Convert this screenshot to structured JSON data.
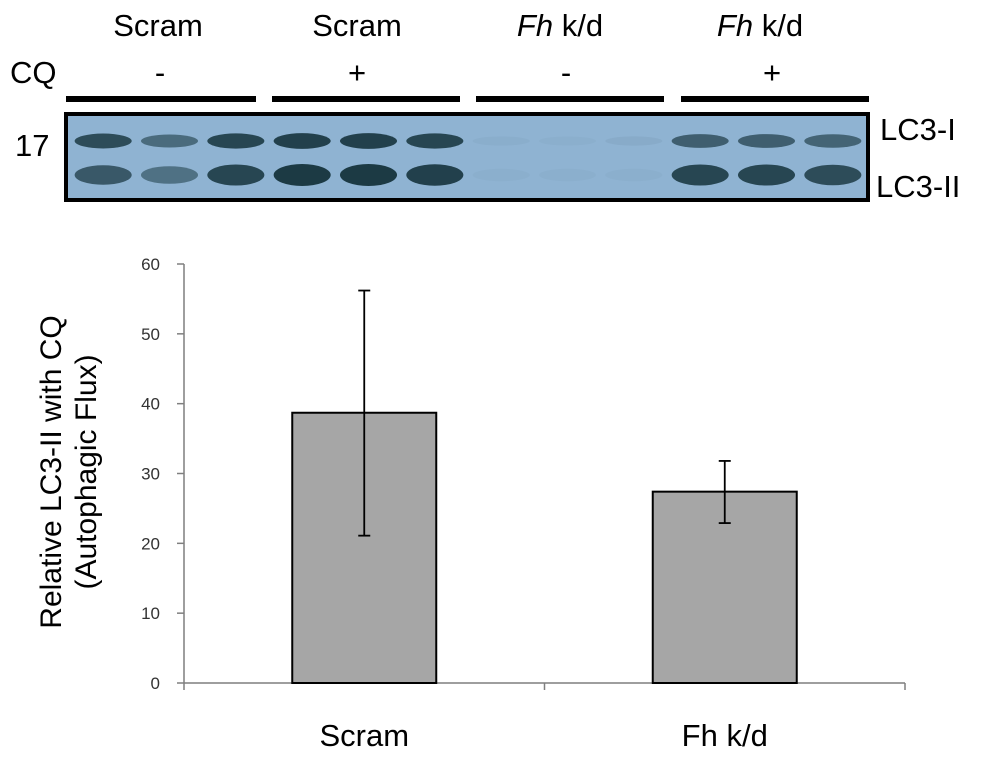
{
  "blot": {
    "groups": [
      {
        "name": "Scram",
        "name_italic": "",
        "treatment": "-"
      },
      {
        "name": "Scram",
        "name_italic": "",
        "treatment": "+"
      },
      {
        "name": " k/d",
        "name_italic": "Fh",
        "treatment": "-"
      },
      {
        "name": " k/d",
        "name_italic": "Fh",
        "treatment": "+"
      }
    ],
    "treatment_label": "CQ",
    "marker": "17",
    "band_labels": [
      "LC3-I",
      "LC3-II"
    ],
    "lanes": [
      {
        "lc3i": 0.85,
        "lc3ii": 0.75
      },
      {
        "lc3i": 0.6,
        "lc3ii": 0.55
      },
      {
        "lc3i": 0.9,
        "lc3ii": 0.9
      },
      {
        "lc3i": 0.95,
        "lc3ii": 1.0
      },
      {
        "lc3i": 0.95,
        "lc3ii": 1.0
      },
      {
        "lc3i": 0.9,
        "lc3ii": 0.95
      },
      {
        "lc3i": 0.04,
        "lc3ii": 0.03
      },
      {
        "lc3i": 0.03,
        "lc3ii": 0.03
      },
      {
        "lc3i": 0.06,
        "lc3ii": 0.03
      },
      {
        "lc3i": 0.7,
        "lc3ii": 0.9
      },
      {
        "lc3i": 0.7,
        "lc3ii": 0.9
      },
      {
        "lc3i": 0.65,
        "lc3ii": 0.85
      }
    ],
    "colors": {
      "membrane": "#8fb3d2",
      "band": "#1c3a44"
    }
  },
  "chart_data": {
    "type": "bar",
    "categories": [
      "Scram",
      "Fh k/d"
    ],
    "values": [
      38.7,
      27.4
    ],
    "error_high": [
      56.2,
      31.8
    ],
    "error_low": [
      21.1,
      22.9
    ],
    "ylabel_line1": "Relative LC3-II with CQ",
    "ylabel_line2": "(Autophagic Flux)",
    "ylim": [
      0,
      60
    ],
    "yticks": [
      0,
      10,
      20,
      30,
      40,
      50,
      60
    ],
    "bar_color": "#a6a6a6",
    "grid": false
  }
}
